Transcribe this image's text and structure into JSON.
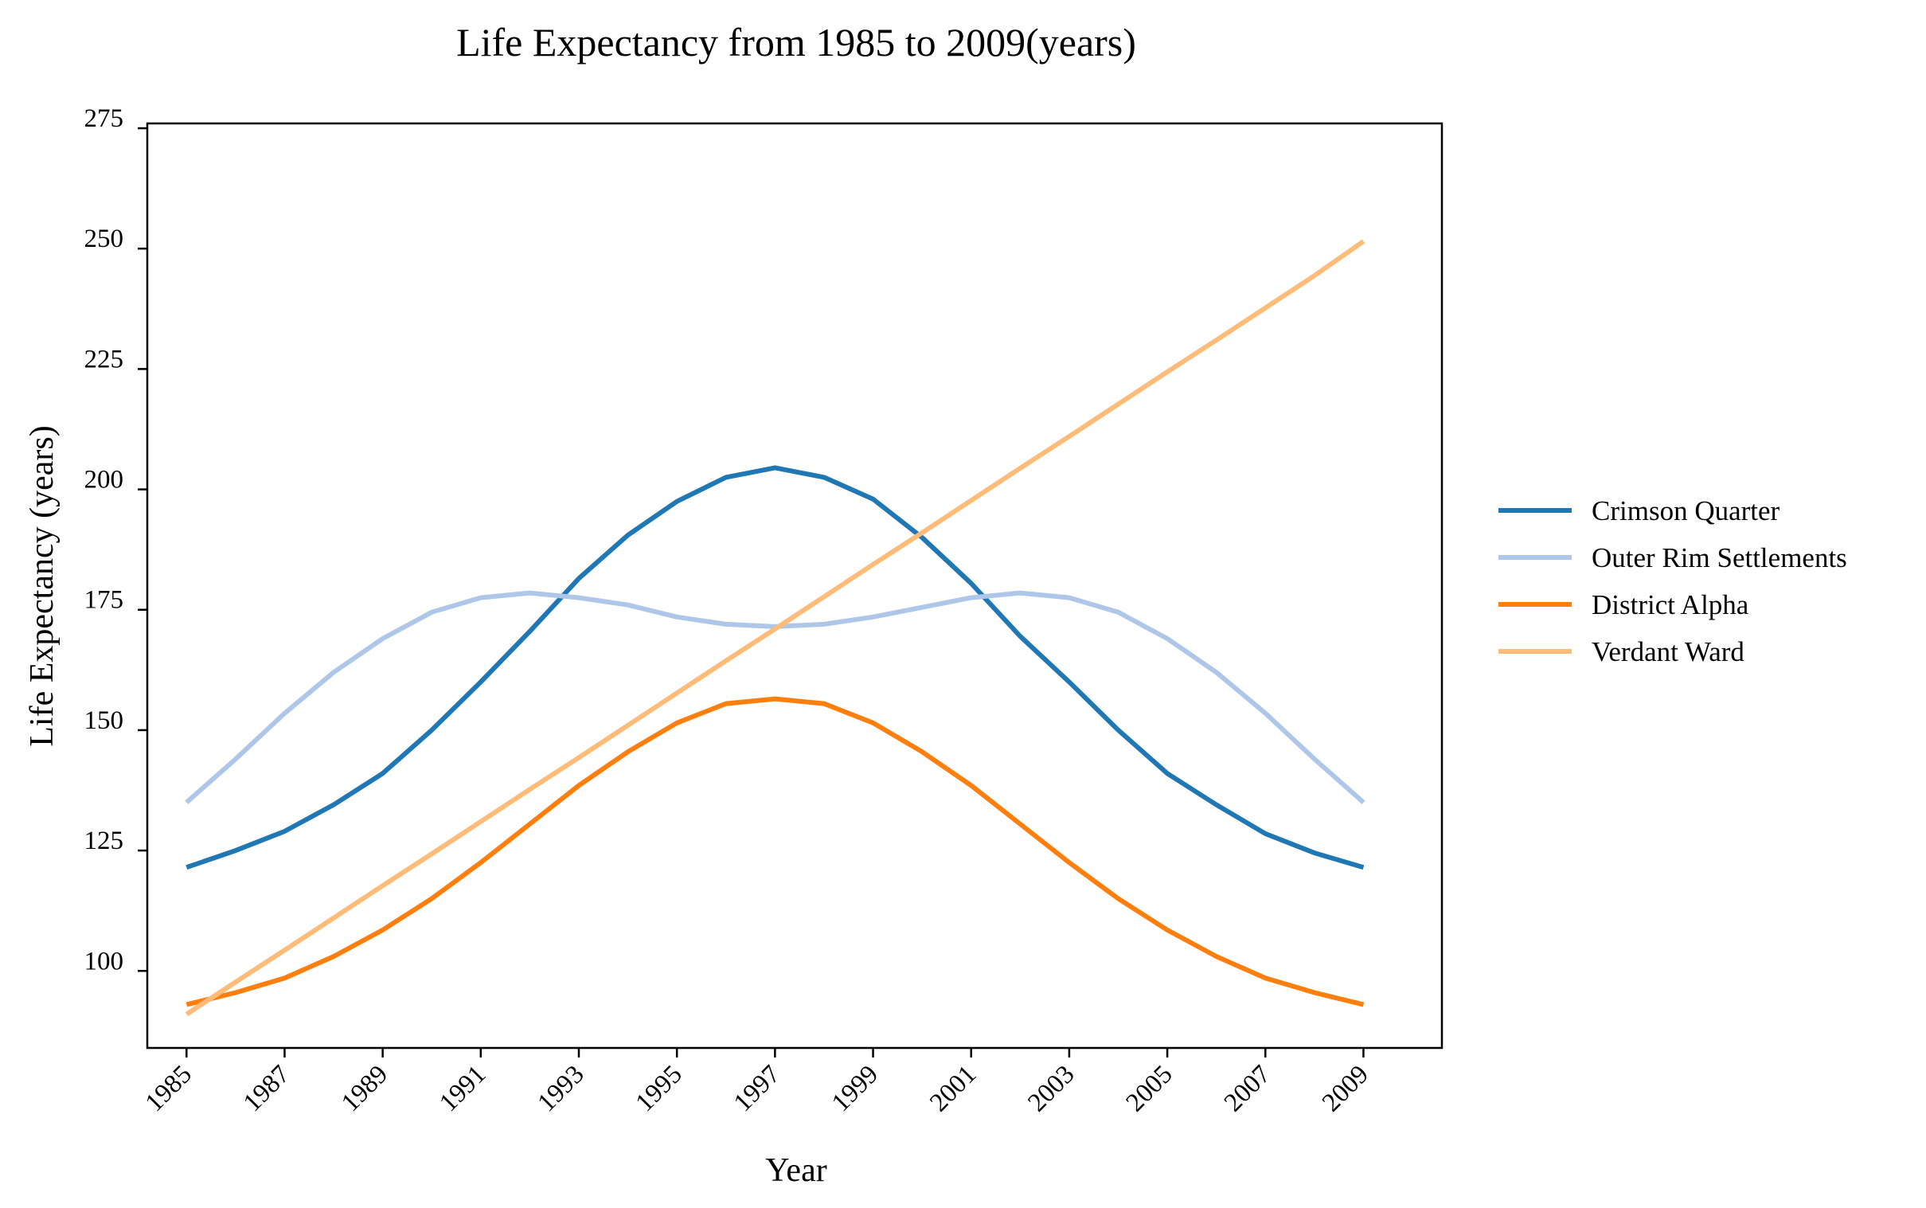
{
  "chart_data": {
    "type": "line",
    "title": "Life Expectancy from 1985 to 2009(years)",
    "xlabel": "Year",
    "ylabel": "Life Expectancy (years)",
    "x": [
      1985,
      1986,
      1987,
      1988,
      1989,
      1990,
      1991,
      1992,
      1993,
      1994,
      1995,
      1996,
      1997,
      1998,
      1999,
      2000,
      2001,
      2002,
      2003,
      2004,
      2005,
      2006,
      2007,
      2008,
      2009
    ],
    "xlim": [
      1984.2,
      2010.6
    ],
    "ylim": [
      84,
      276
    ],
    "x_ticks": [
      "1985",
      "1987",
      "1989",
      "1991",
      "1993",
      "1995",
      "1997",
      "1999",
      "2001",
      "2003",
      "2005",
      "2007",
      "2009"
    ],
    "y_ticks": [
      "100",
      "125",
      "150",
      "175",
      "200",
      "225",
      "250",
      "275"
    ],
    "grid": false,
    "legend_position": "right",
    "series": [
      {
        "name": "Crimson Quarter",
        "color": "#1f77b4",
        "values": [
          121.5,
          125,
          129,
          134.5,
          141,
          150,
          160,
          170.5,
          181.5,
          190.5,
          197.5,
          202.5,
          204.5,
          202.5,
          198,
          190,
          180.5,
          169.5,
          160,
          150,
          141,
          134.5,
          128.5,
          124.5,
          121.5
        ]
      },
      {
        "name": "Outer Rim Settlements",
        "color": "#aec7e8",
        "values": [
          135,
          144,
          153.5,
          162,
          169,
          174.5,
          177.5,
          178.5,
          177.5,
          176,
          173.5,
          172,
          171.5,
          172,
          173.5,
          175.5,
          177.5,
          178.5,
          177.5,
          174.5,
          169,
          162,
          153.5,
          144,
          135
        ]
      },
      {
        "name": "District Alpha",
        "color": "#ff7f0e",
        "values": [
          93,
          95.5,
          98.5,
          103,
          108.5,
          115,
          122.5,
          130.5,
          138.5,
          145.5,
          151.5,
          155.5,
          156.5,
          155.5,
          151.5,
          145.5,
          138.5,
          130.5,
          122.5,
          115,
          108.5,
          103,
          98.5,
          95.5,
          93
        ]
      },
      {
        "name": "Verdant Ward",
        "color": "#ffbb78",
        "values": [
          91,
          97.7,
          104.3,
          111,
          117.7,
          124.3,
          131,
          137.7,
          144.3,
          151,
          157.7,
          164.4,
          171,
          177.7,
          184.4,
          191,
          197.7,
          204.4,
          211,
          217.7,
          224.4,
          231,
          237.7,
          244.4,
          251.5
        ]
      }
    ]
  }
}
